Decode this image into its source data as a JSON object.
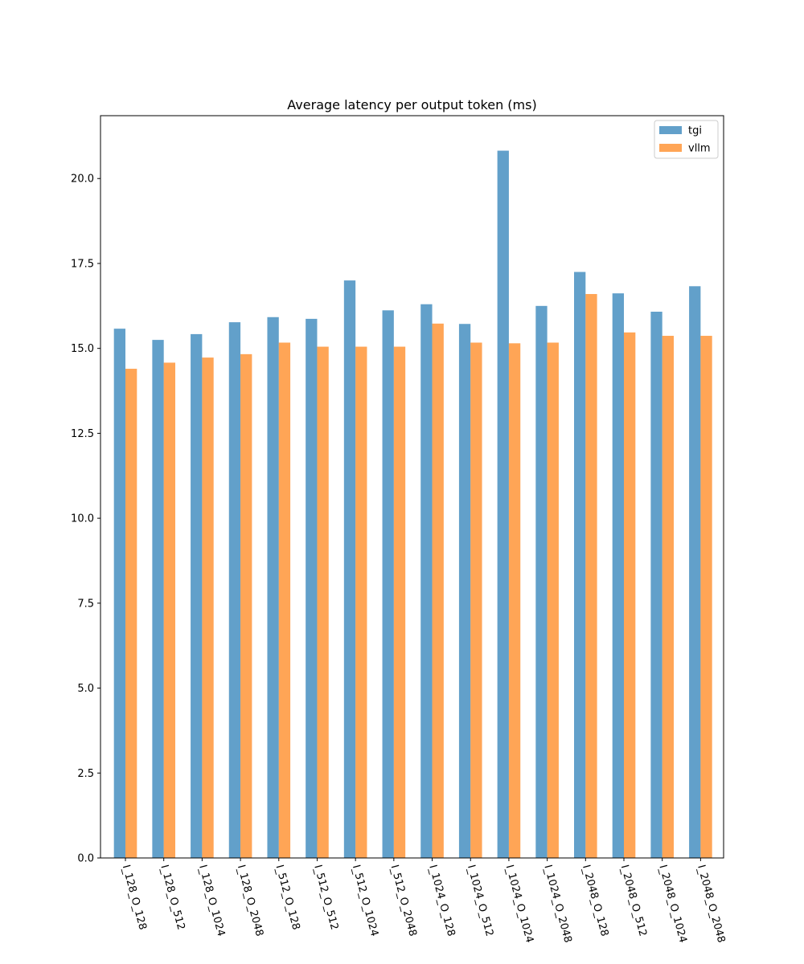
{
  "chart_data": {
    "type": "bar",
    "title": "Average latency per output token (ms)",
    "xlabel": "",
    "ylabel": "",
    "ylim": [
      0,
      21.85
    ],
    "yticks": [
      0.0,
      2.5,
      5.0,
      7.5,
      10.0,
      12.5,
      15.0,
      17.5,
      20.0
    ],
    "ytick_labels": [
      "0.0",
      "2.5",
      "5.0",
      "7.5",
      "10.0",
      "12.5",
      "15.0",
      "17.5",
      "20.0"
    ],
    "grid": false,
    "legend_position": "top-right",
    "categories": [
      "I_128_O_128",
      "I_128_O_512",
      "I_128_O_1024",
      "I_128_O_2048",
      "I_512_O_128",
      "I_512_O_512",
      "I_512_O_1024",
      "I_512_O_2048",
      "I_1024_O_128",
      "I_1024_O_512",
      "I_1024_O_1024",
      "I_1024_O_2048",
      "I_2048_O_128",
      "I_2048_O_512",
      "I_2048_O_1024",
      "I_2048_O_2048"
    ],
    "series": [
      {
        "name": "tgi",
        "color": "#1f77b4",
        "values": [
          15.58,
          15.25,
          15.42,
          15.77,
          15.92,
          15.87,
          17.0,
          16.12,
          16.3,
          15.72,
          20.82,
          16.25,
          17.25,
          16.62,
          16.08,
          16.83
        ]
      },
      {
        "name": "vllm",
        "color": "#ff7f0e",
        "values": [
          14.4,
          14.58,
          14.73,
          14.83,
          15.17,
          15.05,
          15.05,
          15.05,
          15.73,
          15.17,
          15.15,
          15.17,
          16.6,
          15.47,
          15.37,
          15.37
        ]
      }
    ]
  }
}
